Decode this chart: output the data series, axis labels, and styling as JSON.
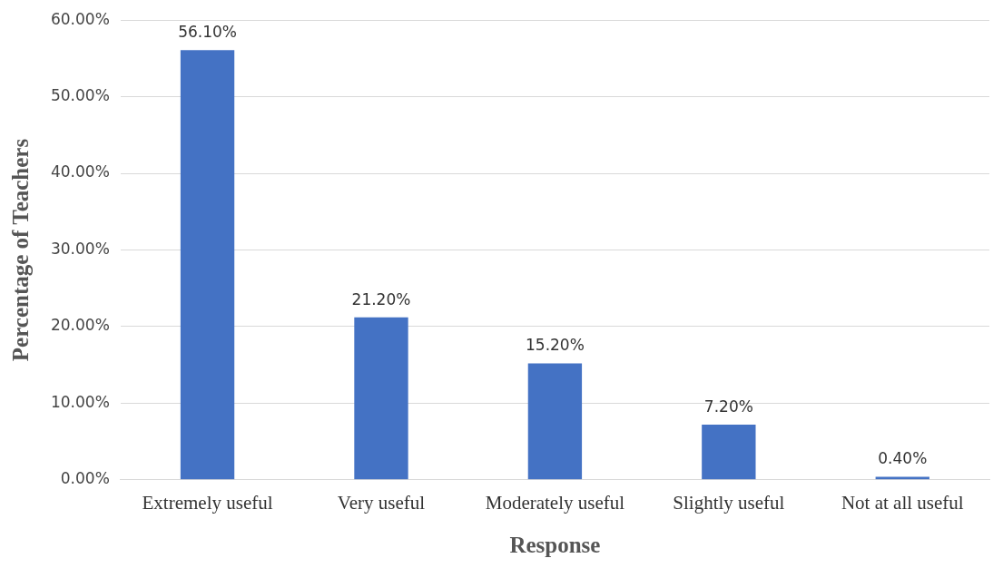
{
  "chart_data": {
    "type": "bar",
    "xlabel": "Response",
    "ylabel": "Percentage of Teachers",
    "categories": [
      "Extremely useful",
      "Very useful",
      "Moderately useful",
      "Slightly useful",
      "Not at all useful"
    ],
    "values": [
      56.1,
      21.2,
      15.2,
      7.2,
      0.4
    ],
    "value_labels": [
      "56.10%",
      "21.20%",
      "15.20%",
      "7.20%",
      "0.40%"
    ],
    "color": "#4472c4",
    "ylim": [
      0,
      60
    ],
    "yticks": [
      {
        "value": 0,
        "label": "0.00%"
      },
      {
        "value": 10,
        "label": "10.00%"
      },
      {
        "value": 20,
        "label": "20.00%"
      },
      {
        "value": 30,
        "label": "30.00%"
      },
      {
        "value": 40,
        "label": "40.00%"
      },
      {
        "value": 50,
        "label": "50.00%"
      },
      {
        "value": 60,
        "label": "60.00%"
      }
    ],
    "grid": "y",
    "legend": false
  }
}
